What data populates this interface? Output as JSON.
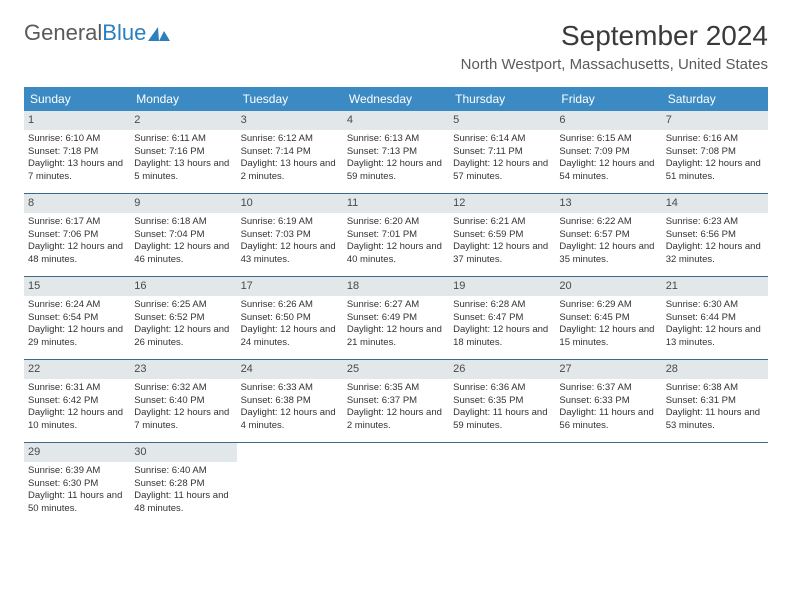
{
  "logo": {
    "part1": "General",
    "part2": "Blue"
  },
  "title": "September 2024",
  "location": "North Westport, Massachusetts, United States",
  "colors": {
    "header_bg": "#3b8ac4",
    "header_text": "#ffffff",
    "daynum_bg": "#e2e7ea",
    "week_border": "#3a6a8f",
    "logo_gray": "#5a5a5a",
    "logo_blue": "#2b7fbf"
  },
  "day_labels": [
    "Sunday",
    "Monday",
    "Tuesday",
    "Wednesday",
    "Thursday",
    "Friday",
    "Saturday"
  ],
  "weeks": [
    [
      {
        "num": "1",
        "sunrise": "Sunrise: 6:10 AM",
        "sunset": "Sunset: 7:18 PM",
        "daylight": "Daylight: 13 hours and 7 minutes."
      },
      {
        "num": "2",
        "sunrise": "Sunrise: 6:11 AM",
        "sunset": "Sunset: 7:16 PM",
        "daylight": "Daylight: 13 hours and 5 minutes."
      },
      {
        "num": "3",
        "sunrise": "Sunrise: 6:12 AM",
        "sunset": "Sunset: 7:14 PM",
        "daylight": "Daylight: 13 hours and 2 minutes."
      },
      {
        "num": "4",
        "sunrise": "Sunrise: 6:13 AM",
        "sunset": "Sunset: 7:13 PM",
        "daylight": "Daylight: 12 hours and 59 minutes."
      },
      {
        "num": "5",
        "sunrise": "Sunrise: 6:14 AM",
        "sunset": "Sunset: 7:11 PM",
        "daylight": "Daylight: 12 hours and 57 minutes."
      },
      {
        "num": "6",
        "sunrise": "Sunrise: 6:15 AM",
        "sunset": "Sunset: 7:09 PM",
        "daylight": "Daylight: 12 hours and 54 minutes."
      },
      {
        "num": "7",
        "sunrise": "Sunrise: 6:16 AM",
        "sunset": "Sunset: 7:08 PM",
        "daylight": "Daylight: 12 hours and 51 minutes."
      }
    ],
    [
      {
        "num": "8",
        "sunrise": "Sunrise: 6:17 AM",
        "sunset": "Sunset: 7:06 PM",
        "daylight": "Daylight: 12 hours and 48 minutes."
      },
      {
        "num": "9",
        "sunrise": "Sunrise: 6:18 AM",
        "sunset": "Sunset: 7:04 PM",
        "daylight": "Daylight: 12 hours and 46 minutes."
      },
      {
        "num": "10",
        "sunrise": "Sunrise: 6:19 AM",
        "sunset": "Sunset: 7:03 PM",
        "daylight": "Daylight: 12 hours and 43 minutes."
      },
      {
        "num": "11",
        "sunrise": "Sunrise: 6:20 AM",
        "sunset": "Sunset: 7:01 PM",
        "daylight": "Daylight: 12 hours and 40 minutes."
      },
      {
        "num": "12",
        "sunrise": "Sunrise: 6:21 AM",
        "sunset": "Sunset: 6:59 PM",
        "daylight": "Daylight: 12 hours and 37 minutes."
      },
      {
        "num": "13",
        "sunrise": "Sunrise: 6:22 AM",
        "sunset": "Sunset: 6:57 PM",
        "daylight": "Daylight: 12 hours and 35 minutes."
      },
      {
        "num": "14",
        "sunrise": "Sunrise: 6:23 AM",
        "sunset": "Sunset: 6:56 PM",
        "daylight": "Daylight: 12 hours and 32 minutes."
      }
    ],
    [
      {
        "num": "15",
        "sunrise": "Sunrise: 6:24 AM",
        "sunset": "Sunset: 6:54 PM",
        "daylight": "Daylight: 12 hours and 29 minutes."
      },
      {
        "num": "16",
        "sunrise": "Sunrise: 6:25 AM",
        "sunset": "Sunset: 6:52 PM",
        "daylight": "Daylight: 12 hours and 26 minutes."
      },
      {
        "num": "17",
        "sunrise": "Sunrise: 6:26 AM",
        "sunset": "Sunset: 6:50 PM",
        "daylight": "Daylight: 12 hours and 24 minutes."
      },
      {
        "num": "18",
        "sunrise": "Sunrise: 6:27 AM",
        "sunset": "Sunset: 6:49 PM",
        "daylight": "Daylight: 12 hours and 21 minutes."
      },
      {
        "num": "19",
        "sunrise": "Sunrise: 6:28 AM",
        "sunset": "Sunset: 6:47 PM",
        "daylight": "Daylight: 12 hours and 18 minutes."
      },
      {
        "num": "20",
        "sunrise": "Sunrise: 6:29 AM",
        "sunset": "Sunset: 6:45 PM",
        "daylight": "Daylight: 12 hours and 15 minutes."
      },
      {
        "num": "21",
        "sunrise": "Sunrise: 6:30 AM",
        "sunset": "Sunset: 6:44 PM",
        "daylight": "Daylight: 12 hours and 13 minutes."
      }
    ],
    [
      {
        "num": "22",
        "sunrise": "Sunrise: 6:31 AM",
        "sunset": "Sunset: 6:42 PM",
        "daylight": "Daylight: 12 hours and 10 minutes."
      },
      {
        "num": "23",
        "sunrise": "Sunrise: 6:32 AM",
        "sunset": "Sunset: 6:40 PM",
        "daylight": "Daylight: 12 hours and 7 minutes."
      },
      {
        "num": "24",
        "sunrise": "Sunrise: 6:33 AM",
        "sunset": "Sunset: 6:38 PM",
        "daylight": "Daylight: 12 hours and 4 minutes."
      },
      {
        "num": "25",
        "sunrise": "Sunrise: 6:35 AM",
        "sunset": "Sunset: 6:37 PM",
        "daylight": "Daylight: 12 hours and 2 minutes."
      },
      {
        "num": "26",
        "sunrise": "Sunrise: 6:36 AM",
        "sunset": "Sunset: 6:35 PM",
        "daylight": "Daylight: 11 hours and 59 minutes."
      },
      {
        "num": "27",
        "sunrise": "Sunrise: 6:37 AM",
        "sunset": "Sunset: 6:33 PM",
        "daylight": "Daylight: 11 hours and 56 minutes."
      },
      {
        "num": "28",
        "sunrise": "Sunrise: 6:38 AM",
        "sunset": "Sunset: 6:31 PM",
        "daylight": "Daylight: 11 hours and 53 minutes."
      }
    ],
    [
      {
        "num": "29",
        "sunrise": "Sunrise: 6:39 AM",
        "sunset": "Sunset: 6:30 PM",
        "daylight": "Daylight: 11 hours and 50 minutes."
      },
      {
        "num": "30",
        "sunrise": "Sunrise: 6:40 AM",
        "sunset": "Sunset: 6:28 PM",
        "daylight": "Daylight: 11 hours and 48 minutes."
      },
      null,
      null,
      null,
      null,
      null
    ]
  ]
}
